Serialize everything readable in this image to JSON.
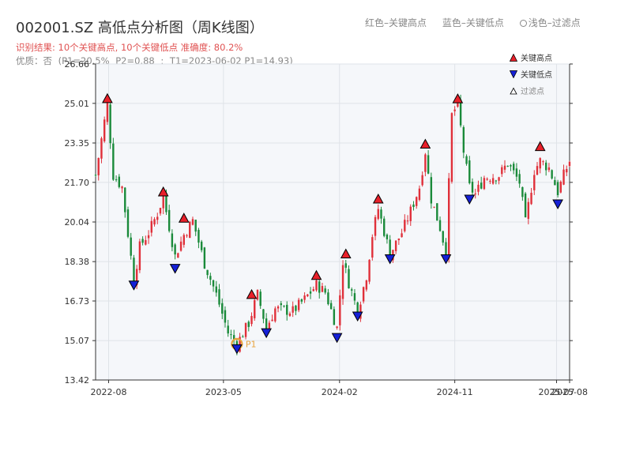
{
  "header": {
    "title": "002001.SZ 高低点分析图（周K线图）",
    "color_legend": {
      "high": "红色–关键高点",
      "low": "蓝色–关键低点",
      "filtered": "浅色–过滤点"
    },
    "result_line": "识别结果: 10个关键高点, 10个关键低点   准确度: 80.2%",
    "quality_line_parts": [
      "优质：否",
      "(P1=20.5%",
      "P2=0.88",
      ";",
      "T1=2023-06-02 P1=14.93)"
    ]
  },
  "legend": {
    "high": "关键高点",
    "low": "关键低点",
    "filtered": "过滤点"
  },
  "colors": {
    "up": "#e0303a",
    "down": "#1a8a3a",
    "high_marker": "#e8202a",
    "low_marker": "#1520d6",
    "highlight": "#e8a33d",
    "plot_bg": "#f5f7fa",
    "grid": "#dfe3e8"
  },
  "chart_data": {
    "type": "candlestick",
    "title": "002001.SZ 高低点分析图（周K线图）",
    "xlabel": "",
    "ylabel": "",
    "ylim": [
      13.42,
      26.66
    ],
    "xlim": [
      "2022-07-01",
      "2025-08-01"
    ],
    "y_ticks": [
      "13.42",
      "15.07",
      "16.73",
      "18.38",
      "20.04",
      "21.70",
      "23.35",
      "25.01",
      "26.66"
    ],
    "x_ticks": [
      "2022-08",
      "2023-05",
      "2024-02",
      "2024-11",
      "2025-07",
      "2025-08"
    ],
    "grid": true,
    "legend_position": "top-right",
    "anchors": [
      [
        "2022-07-01",
        22.0
      ],
      [
        "2022-07-15",
        23.5
      ],
      [
        "2022-07-29",
        25.01
      ],
      [
        "2022-08-12",
        22.0
      ],
      [
        "2022-09-02",
        21.5
      ],
      [
        "2022-09-30",
        17.6
      ],
      [
        "2022-10-14",
        19.0
      ],
      [
        "2022-11-04",
        19.6
      ],
      [
        "2022-11-25",
        20.4
      ],
      [
        "2022-12-09",
        21.1
      ],
      [
        "2023-01-06",
        18.6
      ],
      [
        "2023-01-27",
        19.5
      ],
      [
        "2023-02-17",
        20.1
      ],
      [
        "2023-03-17",
        18.3
      ],
      [
        "2023-04-14",
        17.0
      ],
      [
        "2023-05-12",
        15.4
      ],
      [
        "2023-06-02",
        14.93
      ],
      [
        "2023-06-30",
        15.8
      ],
      [
        "2023-07-21",
        17.0
      ],
      [
        "2023-08-11",
        15.6
      ],
      [
        "2023-09-01",
        16.4
      ],
      [
        "2023-10-13",
        16.3
      ],
      [
        "2023-11-10",
        16.8
      ],
      [
        "2023-12-08",
        17.4
      ],
      [
        "2023-12-29",
        17.1
      ],
      [
        "2024-01-26",
        15.6
      ],
      [
        "2024-02-09",
        18.4
      ],
      [
        "2024-02-23",
        17.5
      ],
      [
        "2024-03-15",
        16.3
      ],
      [
        "2024-04-05",
        17.8
      ],
      [
        "2024-04-19",
        19.5
      ],
      [
        "2024-05-03",
        20.6
      ],
      [
        "2024-05-31",
        18.7
      ],
      [
        "2024-06-28",
        19.6
      ],
      [
        "2024-07-19",
        20.5
      ],
      [
        "2024-08-09",
        21.5
      ],
      [
        "2024-08-23",
        23.0
      ],
      [
        "2024-09-06",
        21.0
      ],
      [
        "2024-09-27",
        19.8
      ],
      [
        "2024-10-11",
        18.8
      ],
      [
        "2024-10-25",
        24.5
      ],
      [
        "2024-11-08",
        25.0
      ],
      [
        "2024-11-22",
        23.0
      ],
      [
        "2024-12-06",
        21.5
      ],
      [
        "2024-12-20",
        21.2
      ],
      [
        "2025-01-10",
        21.9
      ],
      [
        "2025-02-14",
        22.0
      ],
      [
        "2025-03-07",
        22.5
      ],
      [
        "2025-04-04",
        21.7
      ],
      [
        "2025-04-18",
        20.0
      ],
      [
        "2025-05-09",
        22.2
      ],
      [
        "2025-05-23",
        22.6
      ],
      [
        "2025-06-13",
        22.3
      ],
      [
        "2025-07-04",
        21.3
      ],
      [
        "2025-07-18",
        22.0
      ],
      [
        "2025-08-01",
        22.6
      ]
    ],
    "key_highs": [
      {
        "date": "2022-07-29",
        "value": 25.01
      },
      {
        "date": "2022-12-09",
        "value": 21.1
      },
      {
        "date": "2023-01-27",
        "value": 20.0
      },
      {
        "date": "2023-07-07",
        "value": 16.8
      },
      {
        "date": "2023-12-08",
        "value": 17.6
      },
      {
        "date": "2024-02-16",
        "value": 18.5
      },
      {
        "date": "2024-05-03",
        "value": 20.8
      },
      {
        "date": "2024-08-23",
        "value": 23.1
      },
      {
        "date": "2024-11-08",
        "value": 25.0
      },
      {
        "date": "2025-05-23",
        "value": 23.0
      }
    ],
    "key_lows": [
      {
        "date": "2022-09-30",
        "value": 17.6
      },
      {
        "date": "2023-01-06",
        "value": 18.3
      },
      {
        "date": "2023-06-02",
        "value": 14.93
      },
      {
        "date": "2023-08-11",
        "value": 15.6
      },
      {
        "date": "2024-01-26",
        "value": 15.4
      },
      {
        "date": "2024-03-15",
        "value": 16.3
      },
      {
        "date": "2024-05-31",
        "value": 18.7
      },
      {
        "date": "2024-10-11",
        "value": 18.7
      },
      {
        "date": "2024-12-06",
        "value": 21.2
      },
      {
        "date": "2025-07-04",
        "value": 21.0
      }
    ],
    "highlighted_point": {
      "date": "2023-06-02",
      "value": 14.93,
      "label": "P1"
    }
  }
}
